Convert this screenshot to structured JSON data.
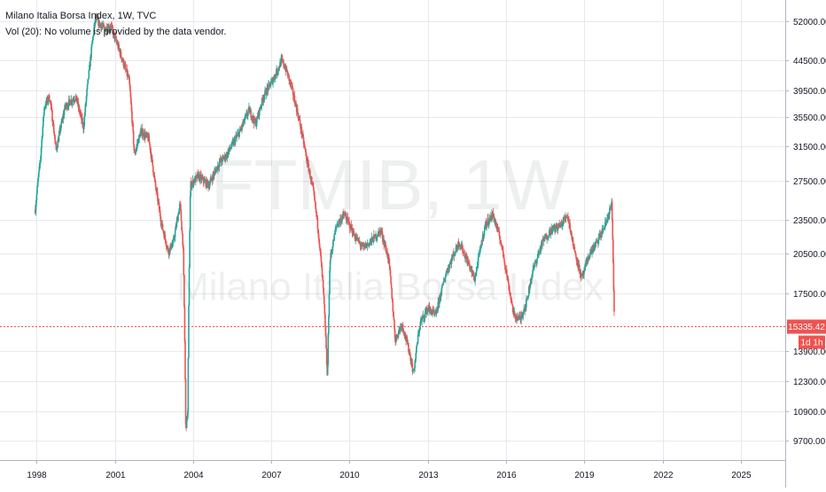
{
  "chart_header": {
    "title": "Milano Italia Borsa Index, 1W, TVC",
    "volume_note": "Vol (20): No volume is provided by the data vendor."
  },
  "watermark": {
    "symbol": "FTMIB, 1W",
    "name": "Milano Italia Borsa Index"
  },
  "colors": {
    "up": "#26a69a",
    "down": "#ef5350",
    "price_line": "#ef5350",
    "grid": "#e6e9ee"
  },
  "price_label": {
    "value": "15335.42",
    "countdown": "1d 1h"
  },
  "chart_data": {
    "type": "candlestick",
    "title": "Milano Italia Borsa Index, 1W, TVC",
    "x_ticks": [
      "1998",
      "2001",
      "2004",
      "2007",
      "2010",
      "2013",
      "2016",
      "2019",
      "2022",
      "2025"
    ],
    "x_range": [
      1996.6,
      2026.7
    ],
    "y_ticks": [
      {
        "label": "52000.00",
        "value": 52000
      },
      {
        "label": "44500.00",
        "value": 44500
      },
      {
        "label": "39500.00",
        "value": 39500
      },
      {
        "label": "35500.00",
        "value": 35500
      },
      {
        "label": "31500.00",
        "value": 31500
      },
      {
        "label": "27500.00",
        "value": 27500
      },
      {
        "label": "23500.00",
        "value": 23500
      },
      {
        "label": "20500.00",
        "value": 20500
      },
      {
        "label": "17500.00",
        "value": 17500
      },
      {
        "label": "13900.00",
        "value": 13900
      },
      {
        "label": "12300.00",
        "value": 12300
      },
      {
        "label": "10900.00",
        "value": 10900
      },
      {
        "label": "9700.00",
        "value": 9700
      }
    ],
    "y_scale": "log",
    "y_range": [
      9200,
      55500
    ],
    "last_price": 15335.42,
    "anchors": [
      [
        1997.95,
        24500
      ],
      [
        1998.15,
        30000
      ],
      [
        1998.3,
        37000
      ],
      [
        1998.5,
        38500
      ],
      [
        1998.75,
        31000
      ],
      [
        1999.1,
        37000
      ],
      [
        1999.5,
        38500
      ],
      [
        1999.8,
        34000
      ],
      [
        2000.0,
        42000
      ],
      [
        2000.25,
        52500
      ],
      [
        2000.6,
        50500
      ],
      [
        2000.85,
        51000
      ],
      [
        2001.3,
        44500
      ],
      [
        2001.55,
        41000
      ],
      [
        2001.75,
        30500
      ],
      [
        2002.0,
        33500
      ],
      [
        2002.3,
        32500
      ],
      [
        2002.55,
        27000
      ],
      [
        2002.8,
        23000
      ],
      [
        2003.05,
        20700
      ],
      [
        2003.25,
        21500
      ],
      [
        2003.5,
        25000
      ],
      [
        2003.62,
        21000
      ],
      [
        2003.72,
        10200
      ],
      [
        2003.8,
        10900
      ],
      [
        2003.9,
        27000
      ],
      [
        2004.2,
        28000
      ],
      [
        2004.6,
        27000
      ],
      [
        2005.0,
        29500
      ],
      [
        2005.3,
        30500
      ],
      [
        2005.8,
        33500
      ],
      [
        2006.15,
        36500
      ],
      [
        2006.4,
        34500
      ],
      [
        2006.7,
        38500
      ],
      [
        2007.1,
        41500
      ],
      [
        2007.4,
        44500
      ],
      [
        2007.6,
        42500
      ],
      [
        2007.8,
        39500
      ],
      [
        2008.1,
        34500
      ],
      [
        2008.35,
        30000
      ],
      [
        2008.6,
        26500
      ],
      [
        2008.8,
        22500
      ],
      [
        2009.0,
        17500
      ],
      [
        2009.15,
        12300
      ],
      [
        2009.25,
        20000
      ],
      [
        2009.5,
        23000
      ],
      [
        2009.8,
        24000
      ],
      [
        2010.2,
        22000
      ],
      [
        2010.5,
        21000
      ],
      [
        2010.8,
        21500
      ],
      [
        2011.2,
        22500
      ],
      [
        2011.5,
        20000
      ],
      [
        2011.75,
        14500
      ],
      [
        2012.0,
        15500
      ],
      [
        2012.3,
        13800
      ],
      [
        2012.45,
        12700
      ],
      [
        2012.7,
        15500
      ],
      [
        2013.0,
        16500
      ],
      [
        2013.3,
        16000
      ],
      [
        2013.7,
        19000
      ],
      [
        2014.2,
        21500
      ],
      [
        2014.5,
        20000
      ],
      [
        2014.8,
        18500
      ],
      [
        2015.2,
        23000
      ],
      [
        2015.5,
        24000
      ],
      [
        2015.8,
        21500
      ],
      [
        2016.1,
        18000
      ],
      [
        2016.3,
        16000
      ],
      [
        2016.55,
        15800
      ],
      [
        2016.8,
        17000
      ],
      [
        2017.0,
        19000
      ],
      [
        2017.4,
        21500
      ],
      [
        2017.7,
        22500
      ],
      [
        2018.1,
        23000
      ],
      [
        2018.35,
        24000
      ],
      [
        2018.6,
        21000
      ],
      [
        2018.9,
        18500
      ],
      [
        2019.2,
        20500
      ],
      [
        2019.5,
        21500
      ],
      [
        2019.8,
        23000
      ],
      [
        2020.05,
        25000
      ],
      [
        2020.15,
        15335
      ]
    ]
  }
}
